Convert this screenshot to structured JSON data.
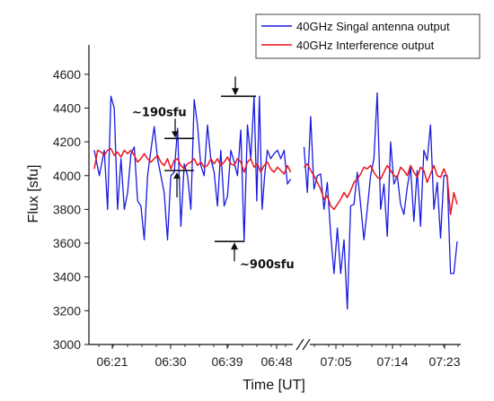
{
  "chart_data": {
    "type": "line",
    "title": "",
    "xlabel": "Time [UT]",
    "ylabel": "Flux [sfu]",
    "ylim": [
      3000,
      4700
    ],
    "yticks": [
      3000,
      3200,
      3400,
      3600,
      3800,
      4000,
      4200,
      4400,
      4600
    ],
    "xticks": [
      "06:21",
      "06:30",
      "06:39",
      "06:48",
      "07:05",
      "07:14",
      "07:23"
    ],
    "axis_break": "between 06:48 and 07:05",
    "legend_position": "top-right",
    "colors": {
      "signal": "#1a1adf",
      "interference": "#e8141e"
    },
    "series": [
      {
        "name": "40GHz Singal antenna output",
        "color": "#1a1adf",
        "segments": [
          [
            [
              0.0,
              4150
            ],
            [
              1.5,
              4000
            ],
            [
              3.0,
              4150
            ],
            [
              4.0,
              3800
            ],
            [
              5.0,
              4470
            ],
            [
              6.0,
              4400
            ],
            [
              7.0,
              3800
            ],
            [
              8.0,
              4100
            ],
            [
              9.0,
              3800
            ],
            [
              10.0,
              3900
            ],
            [
              11.0,
              4130
            ],
            [
              12.0,
              4170
            ],
            [
              13.0,
              3850
            ],
            [
              14.0,
              3820
            ],
            [
              15.0,
              3620
            ],
            [
              16.0,
              4000
            ],
            [
              17.0,
              4150
            ],
            [
              18.0,
              4290
            ],
            [
              19.0,
              4100
            ],
            [
              20.0,
              4000
            ],
            [
              21.0,
              3900
            ],
            [
              22.0,
              3620
            ],
            [
              23.0,
              4000
            ],
            [
              24.0,
              4020
            ],
            [
              25.0,
              4280
            ],
            [
              26.0,
              3700
            ],
            [
              27.0,
              4070
            ],
            [
              28.0,
              4000
            ],
            [
              29.0,
              3800
            ],
            [
              30.0,
              4450
            ],
            [
              31.0,
              4300
            ],
            [
              32.0,
              4060
            ],
            [
              33.0,
              4000
            ],
            [
              34.0,
              4300
            ],
            [
              35.0,
              4100
            ],
            [
              36.0,
              4020
            ],
            [
              37.0,
              3820
            ],
            [
              38.0,
              4150
            ],
            [
              39.0,
              3820
            ],
            [
              40.0,
              3880
            ],
            [
              41.0,
              4150
            ],
            [
              42.0,
              4080
            ],
            [
              43.0,
              4000
            ],
            [
              44.0,
              4270
            ],
            [
              45.0,
              3610
            ],
            [
              46.0,
              4300
            ],
            [
              47.0,
              4100
            ],
            [
              48.0,
              4470
            ],
            [
              48.8,
              3850
            ],
            [
              49.6,
              4470
            ],
            [
              50.4,
              3800
            ],
            [
              51.2,
              4010
            ],
            [
              52.0,
              4150
            ],
            [
              53.0,
              4100
            ],
            [
              54.0,
              4130
            ],
            [
              55.0,
              4150
            ],
            [
              56.0,
              4100
            ],
            [
              57.0,
              4150
            ],
            [
              58.0,
              3950
            ],
            [
              59.0,
              3980
            ]
          ],
          [
            [
              63.0,
              4170
            ],
            [
              64.0,
              3900
            ],
            [
              65.0,
              4350
            ],
            [
              66.0,
              3920
            ],
            [
              67.0,
              4000
            ],
            [
              68.0,
              4010
            ],
            [
              69.0,
              3800
            ],
            [
              70.0,
              3960
            ],
            [
              71.0,
              3650
            ],
            [
              72.0,
              3420
            ],
            [
              73.0,
              3690
            ],
            [
              74.0,
              3420
            ],
            [
              75.0,
              3620
            ],
            [
              76.0,
              3210
            ],
            [
              77.0,
              3820
            ],
            [
              78.0,
              3830
            ],
            [
              79.0,
              4020
            ],
            [
              80.0,
              3830
            ],
            [
              81.0,
              3620
            ],
            [
              82.0,
              3800
            ],
            [
              83.0,
              4000
            ],
            [
              84.0,
              4100
            ],
            [
              85.0,
              4490
            ],
            [
              86.0,
              3800
            ],
            [
              87.0,
              3950
            ],
            [
              88.0,
              3640
            ],
            [
              89.0,
              4200
            ],
            [
              90.0,
              3950
            ],
            [
              91.0,
              4000
            ],
            [
              92.0,
              3830
            ],
            [
              93.0,
              3770
            ],
            [
              94.0,
              3930
            ],
            [
              95.0,
              4050
            ],
            [
              96.0,
              3730
            ],
            [
              97.0,
              4030
            ],
            [
              98.0,
              3700
            ],
            [
              99.0,
              4150
            ],
            [
              100.0,
              4090
            ],
            [
              101.0,
              4300
            ],
            [
              102.0,
              3800
            ],
            [
              103.0,
              3960
            ],
            [
              104.0,
              3630
            ],
            [
              105.0,
              4000
            ],
            [
              106.0,
              4000
            ],
            [
              107.0,
              3420
            ],
            [
              108.0,
              3420
            ],
            [
              109.0,
              3610
            ]
          ]
        ]
      },
      {
        "name": "40GHz Interference output",
        "color": "#e8141e",
        "segments": [
          [
            [
              0.0,
              4040
            ],
            [
              1.0,
              4150
            ],
            [
              2.0,
              4140
            ],
            [
              3.0,
              4120
            ],
            [
              4.0,
              4150
            ],
            [
              5.0,
              4160
            ],
            [
              6.0,
              4120
            ],
            [
              7.0,
              4140
            ],
            [
              8.0,
              4110
            ],
            [
              9.0,
              4150
            ],
            [
              10.0,
              4130
            ],
            [
              11.0,
              4150
            ],
            [
              12.0,
              4120
            ],
            [
              13.0,
              4080
            ],
            [
              14.0,
              4100
            ],
            [
              15.0,
              4130
            ],
            [
              16.0,
              4100
            ],
            [
              17.0,
              4080
            ],
            [
              18.0,
              4100
            ],
            [
              19.0,
              4120
            ],
            [
              20.0,
              4080
            ],
            [
              21.0,
              4060
            ],
            [
              22.0,
              4100
            ],
            [
              23.0,
              4040
            ],
            [
              24.0,
              4090
            ],
            [
              25.0,
              4100
            ],
            [
              26.0,
              4060
            ],
            [
              27.0,
              4040
            ],
            [
              28.0,
              4070
            ],
            [
              29.0,
              4080
            ],
            [
              30.0,
              4100
            ],
            [
              31.0,
              4060
            ],
            [
              32.0,
              4080
            ],
            [
              33.0,
              4050
            ],
            [
              34.0,
              4060
            ],
            [
              35.0,
              4100
            ],
            [
              36.0,
              4070
            ],
            [
              37.0,
              4100
            ],
            [
              38.0,
              4060
            ],
            [
              39.0,
              4080
            ],
            [
              40.0,
              4110
            ],
            [
              41.0,
              4070
            ],
            [
              42.0,
              4060
            ],
            [
              43.0,
              4100
            ],
            [
              44.0,
              4080
            ],
            [
              45.0,
              4020
            ],
            [
              46.0,
              4080
            ],
            [
              47.0,
              4100
            ],
            [
              48.0,
              4050
            ],
            [
              49.0,
              4070
            ],
            [
              50.0,
              4020
            ],
            [
              51.0,
              4060
            ],
            [
              52.0,
              4080
            ],
            [
              53.0,
              4040
            ],
            [
              54.0,
              4020
            ],
            [
              55.0,
              4050
            ],
            [
              56.0,
              4030
            ],
            [
              57.0,
              4010
            ],
            [
              58.0,
              4060
            ],
            [
              59.0,
              4020
            ]
          ],
          [
            [
              63.0,
              4050
            ],
            [
              64.0,
              4070
            ],
            [
              65.0,
              4030
            ],
            [
              66.0,
              4000
            ],
            [
              67.0,
              3960
            ],
            [
              68.0,
              3920
            ],
            [
              69.0,
              3860
            ],
            [
              70.0,
              3880
            ],
            [
              71.0,
              3820
            ],
            [
              72.0,
              3800
            ],
            [
              73.0,
              3830
            ],
            [
              74.0,
              3860
            ],
            [
              75.0,
              3900
            ],
            [
              76.0,
              3870
            ],
            [
              77.0,
              3910
            ],
            [
              78.0,
              3960
            ],
            [
              79.0,
              3980
            ],
            [
              80.0,
              4010
            ],
            [
              81.0,
              4050
            ],
            [
              82.0,
              4040
            ],
            [
              83.0,
              4060
            ],
            [
              84.0,
              4020
            ],
            [
              85.0,
              3990
            ],
            [
              86.0,
              3980
            ],
            [
              87.0,
              4020
            ],
            [
              88.0,
              4060
            ],
            [
              89.0,
              4030
            ],
            [
              90.0,
              4000
            ],
            [
              91.0,
              3990
            ],
            [
              92.0,
              4050
            ],
            [
              93.0,
              4030
            ],
            [
              94.0,
              4000
            ],
            [
              95.0,
              4060
            ],
            [
              96.0,
              4020
            ],
            [
              97.0,
              3990
            ],
            [
              98.0,
              4050
            ],
            [
              99.0,
              4030
            ],
            [
              100.0,
              3960
            ],
            [
              101.0,
              4010
            ],
            [
              102.0,
              4060
            ],
            [
              103.0,
              4000
            ],
            [
              104.0,
              3990
            ],
            [
              105.0,
              4040
            ],
            [
              106.0,
              3990
            ],
            [
              107.0,
              3770
            ],
            [
              108.0,
              3900
            ],
            [
              109.0,
              3830
            ]
          ]
        ]
      }
    ],
    "annotations": [
      {
        "text": "~190sfu",
        "upper": 4220,
        "lower": 4030
      },
      {
        "text": "~900sfu",
        "upper": 4470,
        "lower": 3610
      }
    ]
  }
}
